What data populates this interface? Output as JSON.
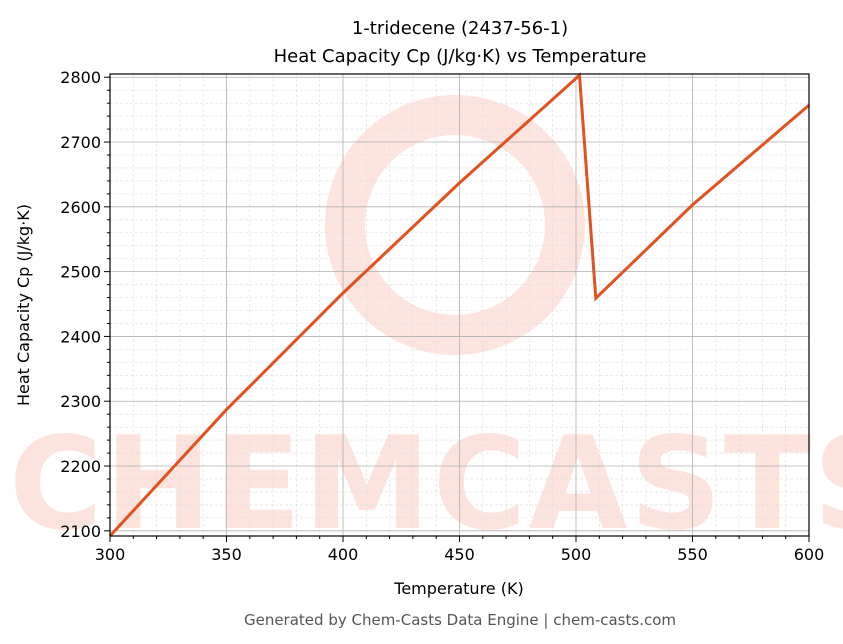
{
  "chart_data": {
    "type": "line",
    "title": "1-tridecene (2437-56-1)",
    "subtitle": "Heat Capacity Cp (J/kg·K) vs Temperature",
    "xlabel": "Temperature (K)",
    "ylabel": "Heat Capacity Cp (J/kg·K)",
    "xlim": [
      300,
      600
    ],
    "ylim": [
      2092,
      2805
    ],
    "xticks": [
      300,
      350,
      400,
      450,
      500,
      550,
      600
    ],
    "yticks": [
      2100,
      2200,
      2300,
      2400,
      2500,
      2600,
      2700,
      2800
    ],
    "grid": true,
    "series": [
      {
        "name": "Cp",
        "color": "#e0521f",
        "x": [
          300,
          350,
          400,
          450,
          501.5,
          508.5,
          550,
          600
        ],
        "y": [
          2092,
          2287,
          2467,
          2637,
          2803,
          2459,
          2603,
          2757
        ]
      }
    ]
  },
  "watermark": "CHEMCASTS",
  "footer": "Generated by Chem-Casts Data Engine | chem-casts.com"
}
